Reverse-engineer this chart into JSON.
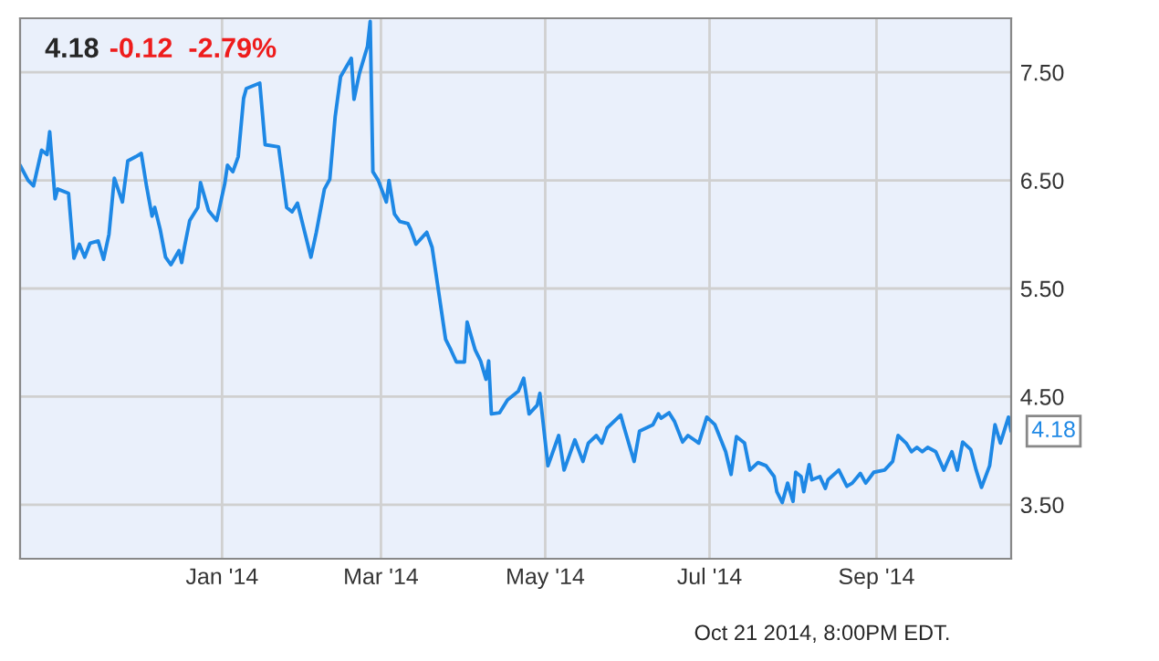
{
  "chart_data": {
    "type": "line",
    "title": "4.18",
    "subtitle": "-0.12  -2.79%",
    "x": [
      "2013-10-18",
      "2013-10-21",
      "2013-10-23",
      "2013-10-26",
      "2013-10-28",
      "2013-10-29",
      "2013-10-31",
      "2013-11-01",
      "2013-11-05",
      "2013-11-07",
      "2013-11-09",
      "2013-11-11",
      "2013-11-13",
      "2013-11-16",
      "2013-11-18",
      "2013-11-20",
      "2013-11-22",
      "2013-11-25",
      "2013-11-27",
      "2013-11-30",
      "2013-12-02",
      "2013-12-04",
      "2013-12-06",
      "2013-12-07",
      "2013-12-09",
      "2013-12-11",
      "2013-12-13",
      "2013-12-16",
      "2013-12-17",
      "2013-12-18",
      "2013-12-20",
      "2013-12-23",
      "2013-12-24",
      "2013-12-27",
      "2013-12-30",
      "2014-01-02",
      "2014-01-03",
      "2014-01-05",
      "2014-01-07",
      "2014-01-09",
      "2014-01-10",
      "2014-01-15",
      "2014-01-17",
      "2014-01-22",
      "2014-01-25",
      "2014-01-27",
      "2014-01-29",
      "2014-01-30",
      "2014-02-03",
      "2014-02-05",
      "2014-02-08",
      "2014-02-10",
      "2014-02-12",
      "2014-02-14",
      "2014-02-18",
      "2014-02-19",
      "2014-02-21",
      "2014-02-24",
      "2014-02-25",
      "2014-02-26",
      "2014-02-28",
      "2014-03-03",
      "2014-03-04",
      "2014-03-06",
      "2014-03-08",
      "2014-03-11",
      "2014-03-12",
      "2014-03-14",
      "2014-03-18",
      "2014-03-20",
      "2014-03-25",
      "2014-03-27",
      "2014-03-29",
      "2014-04-01",
      "2014-04-02",
      "2014-04-05",
      "2014-04-07",
      "2014-04-09",
      "2014-04-10",
      "2014-04-11",
      "2014-04-14",
      "2014-04-17",
      "2014-04-21",
      "2014-04-23",
      "2014-04-25",
      "2014-04-28",
      "2014-04-29",
      "2014-05-02",
      "2014-05-06",
      "2014-05-08",
      "2014-05-12",
      "2014-05-15",
      "2014-05-17",
      "2014-05-20",
      "2014-05-22",
      "2014-05-24",
      "2014-05-29",
      "2014-05-30",
      "2014-06-03",
      "2014-06-05",
      "2014-06-10",
      "2014-06-12",
      "2014-06-13",
      "2014-06-16",
      "2014-06-18",
      "2014-06-21",
      "2014-06-23",
      "2014-06-27",
      "2014-06-30",
      "2014-07-03",
      "2014-07-07",
      "2014-07-09",
      "2014-07-11",
      "2014-07-14",
      "2014-07-16",
      "2014-07-19",
      "2014-07-22",
      "2014-07-25",
      "2014-07-26",
      "2014-07-28",
      "2014-07-30",
      "2014-08-01",
      "2014-08-02",
      "2014-08-04",
      "2014-08-05",
      "2014-08-07",
      "2014-08-08",
      "2014-08-11",
      "2014-08-13",
      "2014-08-14",
      "2014-08-18",
      "2014-08-21",
      "2014-08-23",
      "2014-08-26",
      "2014-08-28",
      "2014-08-31",
      "2014-09-04",
      "2014-09-07",
      "2014-09-09",
      "2014-09-12",
      "2014-09-14",
      "2014-09-16",
      "2014-09-18",
      "2014-09-20",
      "2014-09-23",
      "2014-09-26",
      "2014-09-29",
      "2014-10-01",
      "2014-10-03",
      "2014-10-06",
      "2014-10-08",
      "2014-10-10",
      "2014-10-13",
      "2014-10-15",
      "2014-10-17",
      "2014-10-20",
      "2014-10-21"
    ],
    "series": [
      {
        "color": "#1e88e5",
        "values": [
          6.64,
          6.5,
          6.45,
          6.78,
          6.74,
          6.95,
          6.33,
          6.42,
          6.38,
          5.78,
          5.91,
          5.79,
          5.92,
          5.94,
          5.77,
          6.0,
          6.52,
          6.3,
          6.68,
          6.72,
          6.75,
          6.44,
          6.17,
          6.25,
          6.05,
          5.79,
          5.72,
          5.85,
          5.74,
          5.88,
          6.13,
          6.25,
          6.48,
          6.22,
          6.13,
          6.47,
          6.64,
          6.58,
          6.72,
          7.26,
          7.35,
          7.4,
          6.83,
          6.81,
          6.25,
          6.21,
          6.29,
          6.19,
          5.79,
          6.02,
          6.42,
          6.51,
          7.09,
          7.46,
          7.63,
          7.25,
          7.49,
          7.74,
          7.97,
          6.58,
          6.5,
          6.3,
          6.5,
          6.19,
          6.12,
          6.1,
          6.05,
          5.91,
          6.02,
          5.88,
          5.03,
          4.93,
          4.82,
          4.82,
          5.19,
          4.93,
          4.83,
          4.66,
          4.83,
          4.34,
          4.35,
          4.47,
          4.55,
          4.67,
          4.34,
          4.42,
          4.53,
          3.86,
          4.14,
          3.82,
          4.1,
          3.9,
          4.07,
          4.14,
          4.07,
          4.21,
          4.33,
          4.24,
          3.9,
          4.18,
          4.24,
          4.34,
          4.3,
          4.35,
          4.27,
          4.08,
          4.14,
          4.07,
          4.31,
          4.24,
          3.99,
          3.78,
          4.13,
          4.07,
          3.82,
          3.89,
          3.86,
          3.76,
          3.62,
          3.52,
          3.7,
          3.53,
          3.8,
          3.76,
          3.62,
          3.87,
          3.73,
          3.76,
          3.65,
          3.73,
          3.82,
          3.67,
          3.7,
          3.79,
          3.7,
          3.8,
          3.82,
          3.9,
          4.14,
          4.07,
          3.99,
          4.03,
          3.99,
          4.03,
          3.99,
          3.82,
          3.99,
          3.82,
          4.08,
          4.01,
          3.82,
          3.66,
          3.86,
          4.24,
          4.07,
          4.31,
          4.18
        ]
      }
    ],
    "xlim": [
      "2013-10-18",
      "2014-10-21"
    ],
    "xticks": [
      {
        "value": "2014-01-01",
        "label": "Jan '14"
      },
      {
        "value": "2014-03-01",
        "label": "Mar '14"
      },
      {
        "value": "2014-05-01",
        "label": "May '14"
      },
      {
        "value": "2014-07-01",
        "label": "Jul '14"
      },
      {
        "value": "2014-09-01",
        "label": "Sep '14"
      }
    ],
    "ylim": [
      3,
      8
    ],
    "yticks": [
      {
        "value": 3.5,
        "label": "3.50"
      },
      {
        "value": 4.5,
        "label": "4.50"
      },
      {
        "value": 5.5,
        "label": "5.50"
      },
      {
        "value": 6.5,
        "label": "6.50"
      },
      {
        "value": 7.5,
        "label": "7.50"
      }
    ],
    "grid": true,
    "legend": false,
    "marker": "none",
    "line_style": "solid",
    "annotations": [
      {
        "text": "4.18",
        "x": "2014-10-21",
        "y": 4.18
      },
      "Oct 21 2014, 8:00PM EDT."
    ]
  }
}
